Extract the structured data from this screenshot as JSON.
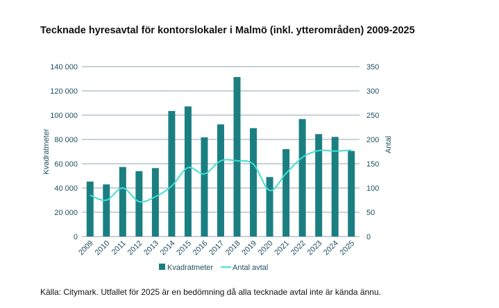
{
  "chart_data": {
    "type": "bar+line",
    "title": "Tecknade hyresavtal för kontorslokaler i Malmö (inkl. ytterområden) 2009-2025",
    "categories": [
      "2009",
      "2010",
      "2011",
      "2012",
      "2013",
      "2014",
      "2015",
      "2016",
      "2017",
      "2018",
      "2019",
      "2020",
      "2021",
      "2022",
      "2023",
      "2024",
      "2025"
    ],
    "series": [
      {
        "name": "Kvadratmeter",
        "type": "bar",
        "axis": "left",
        "color": "#1b7f82",
        "values": [
          45300,
          43000,
          57300,
          53900,
          56400,
          103400,
          107200,
          81700,
          92400,
          131400,
          89300,
          49000,
          72000,
          96800,
          84400,
          82100,
          70500
        ]
      },
      {
        "name": "Antal avtal",
        "type": "line",
        "axis": "right",
        "color": "#3fe0d0",
        "values": [
          85,
          75,
          100,
          72,
          82,
          104,
          142,
          129,
          156,
          156,
          149,
          95,
          130,
          163,
          177,
          176,
          178
        ]
      }
    ],
    "ylabel": "Kvadratmeter",
    "ylim": [
      0,
      140000
    ],
    "yticks": [
      "0",
      "20 000",
      "40 000",
      "60 000",
      "80 000",
      "100 000",
      "120 000",
      "140 000"
    ],
    "y2label": "Antal",
    "y2lim": [
      0,
      350
    ],
    "y2ticks": [
      "0",
      "50",
      "100",
      "150",
      "200",
      "250",
      "300",
      "350"
    ],
    "grid": true,
    "legend": "bottom"
  },
  "source": "Källa: Citymark. Utfallet för 2025 är en bedömning då alla tecknade avtal inte är kända ännu."
}
